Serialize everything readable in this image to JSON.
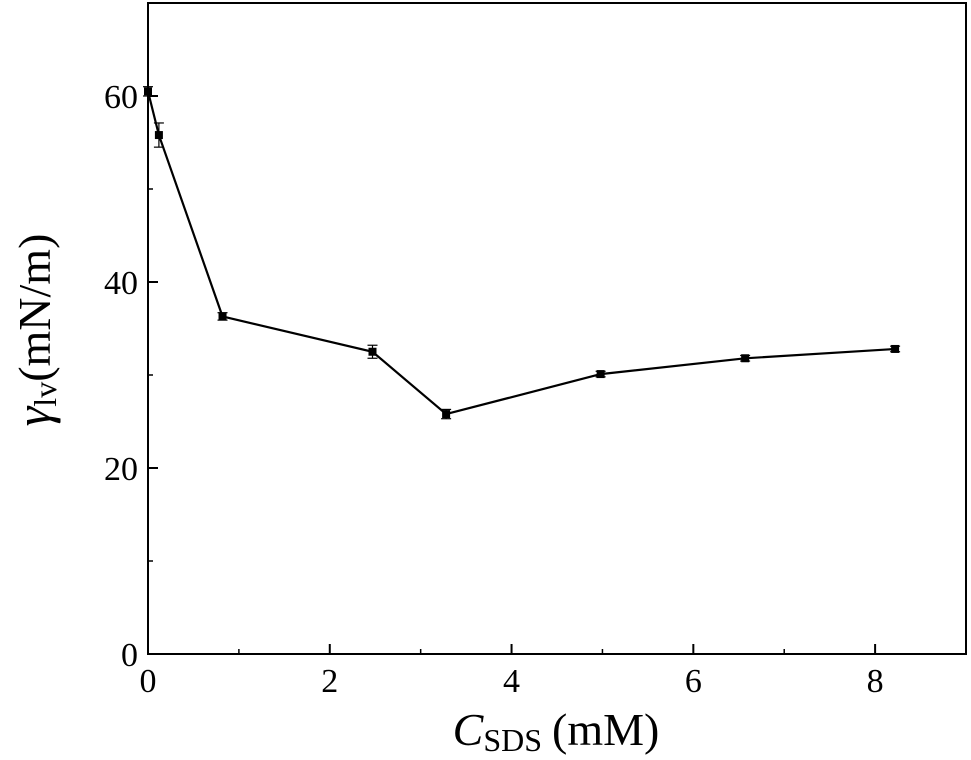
{
  "chart_data": {
    "type": "line",
    "title": "",
    "xlabel": {
      "symbol": "C",
      "subscript": "SDS",
      "unit": "(mM)"
    },
    "ylabel": {
      "symbol": "γ",
      "subscript": "lv",
      "unit": "(mN/m)"
    },
    "xlim": [
      0,
      9
    ],
    "ylim": [
      0,
      70
    ],
    "xticks": [
      0,
      2,
      4,
      6,
      8
    ],
    "yticks": [
      0,
      20,
      40,
      60
    ],
    "xtick_labels": [
      "0",
      "2",
      "4",
      "6",
      "8"
    ],
    "ytick_labels": [
      "0",
      "20",
      "40",
      "60"
    ],
    "grid": false,
    "legend": "none",
    "series": [
      {
        "x": [
          0,
          0.12,
          0.82,
          2.47,
          3.28,
          4.98,
          6.57,
          8.22
        ],
        "y": [
          60.5,
          55.8,
          36.3,
          32.5,
          25.8,
          30.1,
          31.8,
          32.8
        ],
        "yerr": [
          0.5,
          1.3,
          0.4,
          0.7,
          0.5,
          0.3,
          0.3,
          0.3
        ],
        "color": "#000000",
        "marker": "square"
      }
    ]
  }
}
